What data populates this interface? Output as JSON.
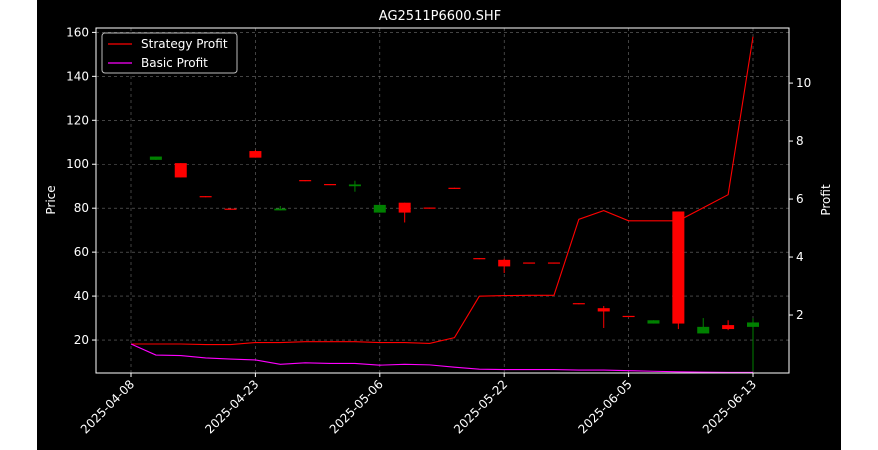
{
  "chart_data": {
    "type": "candlestick",
    "title": "AG2511P6600.SHF",
    "xlabel": "",
    "ylabel_left": "Price",
    "ylabel_right": "Profit",
    "ylim_left": [
      5,
      162
    ],
    "ylim_right": [
      0.0,
      11.9
    ],
    "yticks_left": [
      20,
      40,
      60,
      80,
      100,
      120,
      140,
      160
    ],
    "yticks_right": [
      2,
      4,
      6,
      8,
      10
    ],
    "x_tick_labels": [
      "2025-04-08",
      "2025-04-23",
      "2025-05-06",
      "2025-05-22",
      "2025-06-05",
      "2025-06-13"
    ],
    "x_tick_index": [
      0,
      5,
      10,
      15,
      20,
      25
    ],
    "grid": true,
    "legend_position": "top-left",
    "colors": {
      "up": "#008000",
      "down": "#ff0000",
      "strategy": "#ff0000",
      "basic": "#ff00ff",
      "background": "#000000",
      "axis": "#ffffff"
    },
    "candles": [
      {
        "i": 1,
        "open": 102,
        "close": 103.5,
        "high": 103.5,
        "low": 102
      },
      {
        "i": 2,
        "open": 100.5,
        "close": 94,
        "high": 100.5,
        "low": 94
      },
      {
        "i": 3,
        "open": 85.5,
        "close": 85,
        "high": 85.5,
        "low": 85
      },
      {
        "i": 4,
        "open": 79.8,
        "close": 79.3,
        "high": 79.8,
        "low": 79.3
      },
      {
        "i": 5,
        "open": 106,
        "close": 103,
        "high": 106.5,
        "low": 103
      },
      {
        "i": 6,
        "open": 79,
        "close": 79.8,
        "high": 81,
        "low": 79
      },
      {
        "i": 7,
        "open": 92.8,
        "close": 92.3,
        "high": 92.8,
        "low": 92.3
      },
      {
        "i": 8,
        "open": 91,
        "close": 90.5,
        "high": 91,
        "low": 90.5
      },
      {
        "i": 9,
        "open": 90,
        "close": 90.8,
        "high": 92.5,
        "low": 87.5
      },
      {
        "i": 10,
        "open": 78,
        "close": 81.5,
        "high": 81.5,
        "low": 78
      },
      {
        "i": 11,
        "open": 82.5,
        "close": 78,
        "high": 82.5,
        "low": 73.5
      },
      {
        "i": 12,
        "open": 80.3,
        "close": 79.8,
        "high": 80.3,
        "low": 79.8
      },
      {
        "i": 13,
        "open": 89.3,
        "close": 88.8,
        "high": 89.3,
        "low": 88.8
      },
      {
        "i": 14,
        "open": 57.3,
        "close": 56.8,
        "high": 57.3,
        "low": 56.8
      },
      {
        "i": 15,
        "open": 56.5,
        "close": 53.5,
        "high": 57,
        "low": 50.5
      },
      {
        "i": 16,
        "open": 55.3,
        "close": 54.8,
        "high": 55.3,
        "low": 54.8
      },
      {
        "i": 17,
        "open": 55.3,
        "close": 54.8,
        "high": 55.3,
        "low": 54.8
      },
      {
        "i": 18,
        "open": 36.8,
        "close": 36.3,
        "high": 36.8,
        "low": 36.3
      },
      {
        "i": 19,
        "open": 34.5,
        "close": 33,
        "high": 35.5,
        "low": 25.5
      },
      {
        "i": 20,
        "open": 31,
        "close": 30.5,
        "high": 31,
        "low": 30.5
      },
      {
        "i": 21,
        "open": 27.5,
        "close": 29,
        "high": 29,
        "low": 27.5
      },
      {
        "i": 22,
        "open": 78.5,
        "close": 27.5,
        "high": 78.5,
        "low": 25
      },
      {
        "i": 23,
        "open": 23,
        "close": 26,
        "high": 30,
        "low": 23
      },
      {
        "i": 24,
        "open": 26.8,
        "close": 25,
        "high": 29,
        "low": 24.5
      },
      {
        "i": 25,
        "open": 26,
        "close": 28,
        "high": 30,
        "low": 6
      }
    ],
    "series": [
      {
        "name": "Strategy Profit",
        "axis": "right",
        "x": [
          0,
          1,
          2,
          3,
          4,
          5,
          6,
          7,
          8,
          9,
          10,
          11,
          12,
          13,
          14,
          15,
          16,
          17,
          18,
          19,
          20,
          21,
          22,
          23,
          24,
          25
        ],
        "values": [
          1.0,
          1.0,
          1.0,
          0.98,
          0.98,
          1.05,
          1.05,
          1.08,
          1.08,
          1.08,
          1.05,
          1.05,
          1.02,
          1.22,
          2.65,
          2.67,
          2.68,
          2.68,
          5.3,
          5.6,
          5.25,
          5.25,
          5.25,
          5.7,
          6.15,
          11.6
        ]
      },
      {
        "name": "Basic Profit",
        "axis": "right",
        "x": [
          0,
          1,
          2,
          3,
          4,
          5,
          6,
          7,
          8,
          9,
          10,
          11,
          12,
          13,
          14,
          15,
          16,
          17,
          18,
          19,
          20,
          21,
          22,
          23,
          24,
          25
        ],
        "values": [
          1.0,
          0.62,
          0.6,
          0.52,
          0.48,
          0.45,
          0.3,
          0.35,
          0.33,
          0.33,
          0.27,
          0.3,
          0.28,
          0.2,
          0.13,
          0.12,
          0.12,
          0.12,
          0.1,
          0.1,
          0.08,
          0.06,
          0.04,
          0.03,
          0.02,
          0.02
        ]
      }
    ]
  }
}
